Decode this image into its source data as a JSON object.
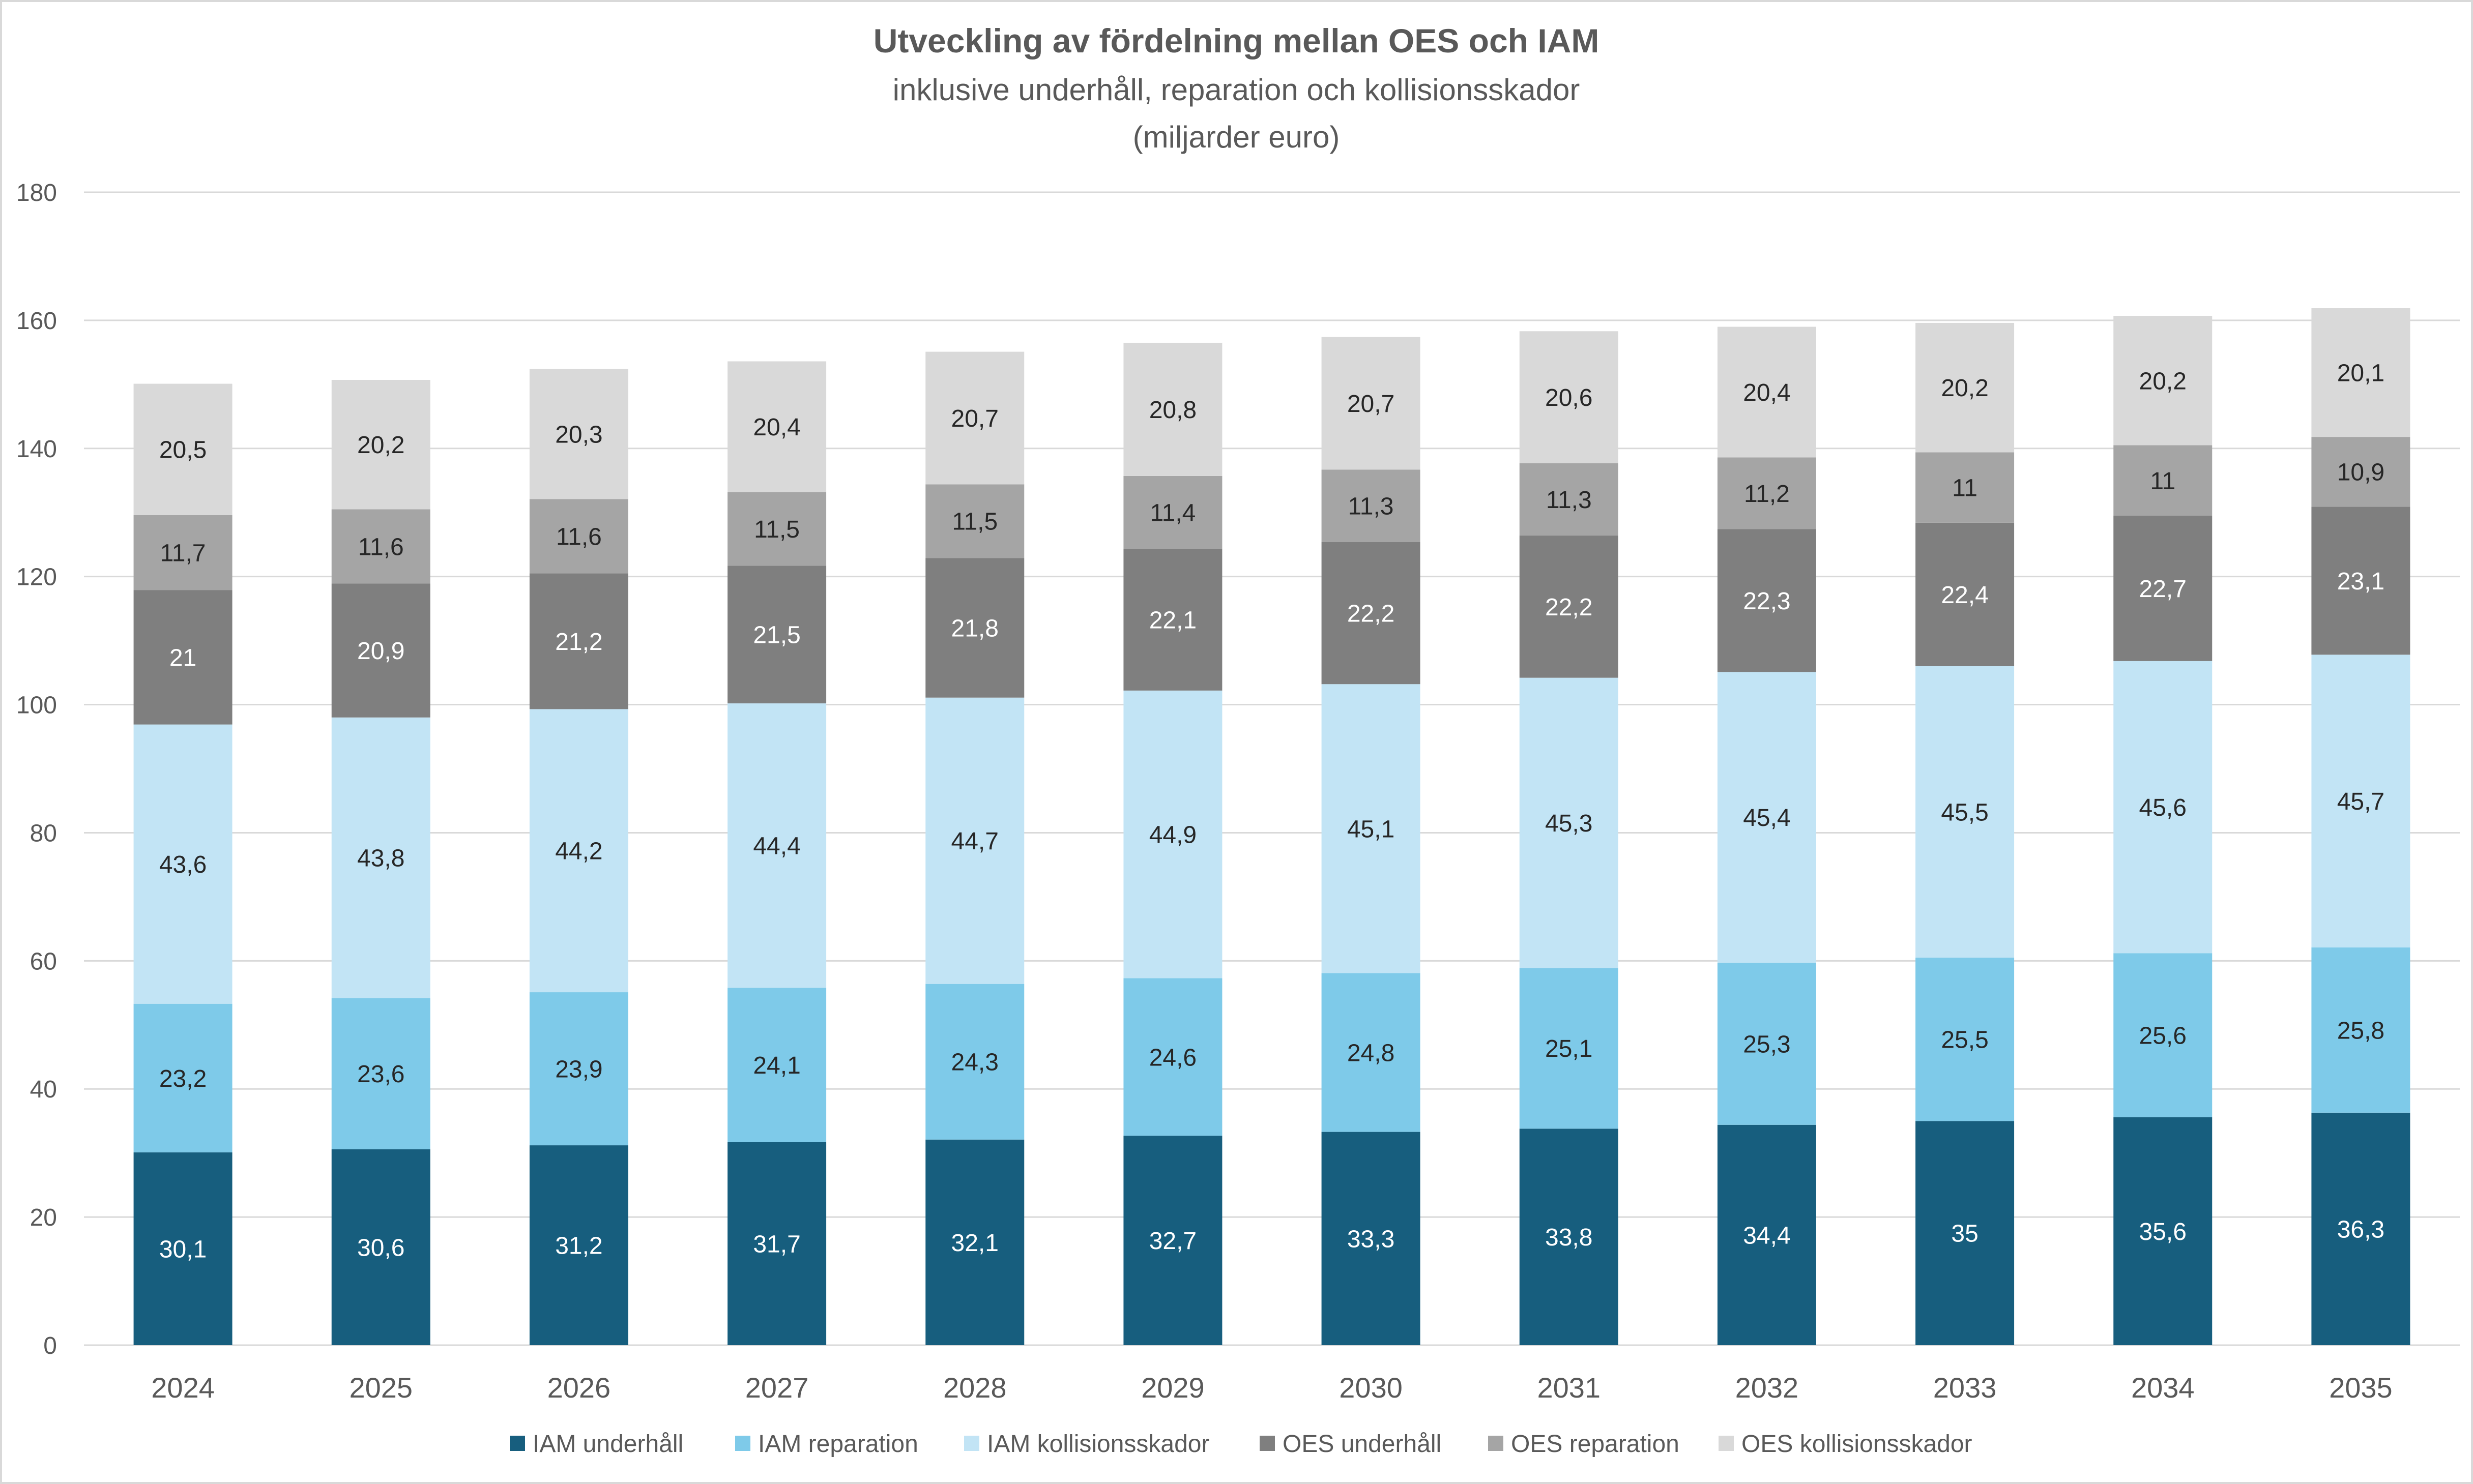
{
  "chart_data": {
    "type": "bar",
    "stacked": true,
    "title": "Utveckling av fördelning mellan OES och IAM",
    "subtitle_lines": [
      "inklusive underhåll, reparation och kollisionsskador",
      "(miljarder euro)"
    ],
    "categories": [
      "2024",
      "2025",
      "2026",
      "2027",
      "2028",
      "2029",
      "2030",
      "2031",
      "2032",
      "2033",
      "2034",
      "2035"
    ],
    "ylim": [
      0,
      180
    ],
    "yticks": [
      0,
      20,
      40,
      60,
      80,
      100,
      120,
      140,
      160,
      180
    ],
    "grid": true,
    "legend_position": "bottom",
    "series": [
      {
        "name": "IAM underhåll",
        "color": "#175e7e",
        "label_color": "#ffffff",
        "values": [
          30.1,
          30.6,
          31.2,
          31.7,
          32.1,
          32.7,
          33.3,
          33.8,
          34.4,
          35,
          35.6,
          36.3
        ],
        "labels": [
          "30,1",
          "30,6",
          "31,2",
          "31,7",
          "32,1",
          "32,7",
          "33,3",
          "33,8",
          "34,4",
          "35",
          "35,6",
          "36,3"
        ]
      },
      {
        "name": "IAM reparation",
        "color": "#7ecae9",
        "label_color": "#262626",
        "values": [
          23.2,
          23.6,
          23.9,
          24.1,
          24.3,
          24.6,
          24.8,
          25.1,
          25.3,
          25.5,
          25.6,
          25.8
        ],
        "labels": [
          "23,2",
          "23,6",
          "23,9",
          "24,1",
          "24,3",
          "24,6",
          "24,8",
          "25,1",
          "25,3",
          "25,5",
          "25,6",
          "25,8"
        ]
      },
      {
        "name": "IAM kollisionsskador",
        "color": "#c2e4f5",
        "label_color": "#262626",
        "values": [
          43.6,
          43.8,
          44.2,
          44.4,
          44.7,
          44.9,
          45.1,
          45.3,
          45.4,
          45.5,
          45.6,
          45.7
        ],
        "labels": [
          "43,6",
          "43,8",
          "44,2",
          "44,4",
          "44,7",
          "44,9",
          "45,1",
          "45,3",
          "45,4",
          "45,5",
          "45,6",
          "45,7"
        ]
      },
      {
        "name": "OES underhåll",
        "color": "#7f7f7f",
        "label_color": "#ffffff",
        "values": [
          21,
          20.9,
          21.2,
          21.5,
          21.8,
          22.1,
          22.2,
          22.2,
          22.3,
          22.4,
          22.7,
          23.1
        ],
        "labels": [
          "21",
          "20,9",
          "21,2",
          "21,5",
          "21,8",
          "22,1",
          "22,2",
          "22,2",
          "22,3",
          "22,4",
          "22,7",
          "23,1"
        ]
      },
      {
        "name": "OES reparation",
        "color": "#a5a5a5",
        "label_color": "#262626",
        "values": [
          11.7,
          11.6,
          11.6,
          11.5,
          11.5,
          11.4,
          11.3,
          11.3,
          11.2,
          11,
          11,
          10.9
        ],
        "labels": [
          "11,7",
          "11,6",
          "11,6",
          "11,5",
          "11,5",
          "11,4",
          "11,3",
          "11,3",
          "11,2",
          "11",
          "11",
          "10,9"
        ]
      },
      {
        "name": "OES kollisionsskador",
        "color": "#d9d9d9",
        "label_color": "#262626",
        "values": [
          20.5,
          20.2,
          20.3,
          20.4,
          20.7,
          20.8,
          20.7,
          20.6,
          20.4,
          20.2,
          20.2,
          20.1
        ],
        "labels": [
          "20,5",
          "20,2",
          "20,3",
          "20,4",
          "20,7",
          "20,8",
          "20,7",
          "20,6",
          "20,4",
          "20,2",
          "20,2",
          "20,1"
        ]
      }
    ]
  }
}
